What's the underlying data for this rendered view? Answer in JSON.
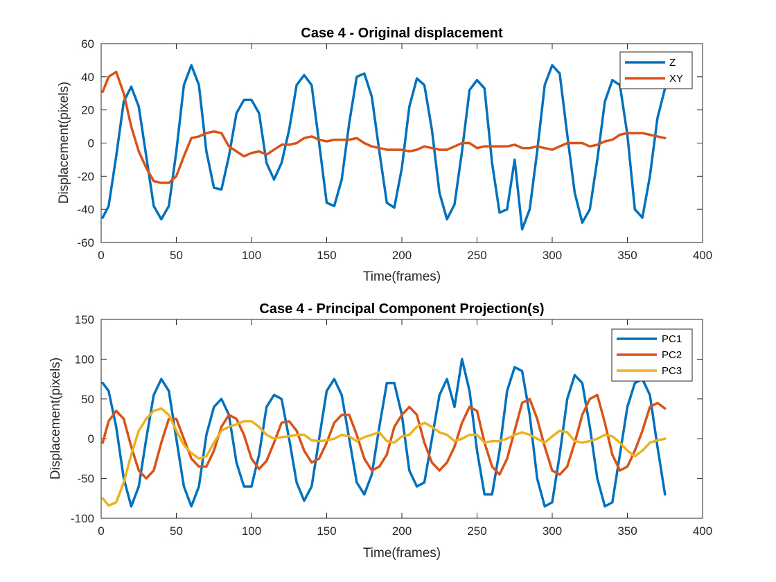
{
  "chart_data": [
    {
      "type": "line",
      "title": "Case 4 - Original displacement",
      "xlabel": "Time(frames)",
      "ylabel": "Displacement(pixels)",
      "xlim": [
        0,
        400
      ],
      "ylim": [
        -60,
        60
      ],
      "xticks": [
        0,
        50,
        100,
        150,
        200,
        250,
        300,
        350,
        400
      ],
      "yticks": [
        -60,
        -40,
        -20,
        0,
        20,
        40,
        60
      ],
      "legend_position": "top-right",
      "grid": false,
      "series": [
        {
          "name": "Z",
          "color": "#0072BD",
          "x": [
            1,
            5,
            10,
            15,
            20,
            25,
            30,
            35,
            40,
            45,
            50,
            55,
            60,
            65,
            70,
            75,
            80,
            85,
            90,
            95,
            100,
            105,
            110,
            115,
            120,
            125,
            130,
            135,
            140,
            145,
            150,
            155,
            160,
            165,
            170,
            175,
            180,
            185,
            190,
            195,
            200,
            205,
            210,
            215,
            220,
            225,
            230,
            235,
            240,
            245,
            250,
            255,
            260,
            265,
            270,
            275,
            280,
            285,
            290,
            295,
            300,
            305,
            310,
            315,
            320,
            325,
            330,
            335,
            340,
            345,
            350,
            355,
            360,
            365,
            370,
            375
          ],
          "values": [
            -45,
            -38,
            -8,
            25,
            34,
            22,
            -8,
            -38,
            -46,
            -38,
            -5,
            35,
            47,
            35,
            -5,
            -27,
            -28,
            -8,
            18,
            26,
            26,
            18,
            -12,
            -22,
            -12,
            8,
            35,
            41,
            35,
            0,
            -36,
            -38,
            -22,
            12,
            40,
            42,
            28,
            -5,
            -36,
            -39,
            -15,
            22,
            39,
            35,
            8,
            -30,
            -46,
            -37,
            -5,
            32,
            38,
            33,
            -12,
            -42,
            -40,
            -10,
            -52,
            -40,
            -5,
            35,
            47,
            42,
            5,
            -30,
            -48,
            -40,
            -10,
            25,
            38,
            35,
            5,
            -40,
            -45,
            -20,
            15,
            33
          ]
        },
        {
          "name": "XY",
          "color": "#D95319",
          "x": [
            1,
            5,
            10,
            15,
            20,
            25,
            30,
            35,
            40,
            45,
            50,
            55,
            60,
            65,
            70,
            75,
            80,
            85,
            90,
            95,
            100,
            105,
            110,
            115,
            120,
            125,
            130,
            135,
            140,
            145,
            150,
            155,
            160,
            165,
            170,
            175,
            180,
            185,
            190,
            195,
            200,
            205,
            210,
            215,
            220,
            225,
            230,
            235,
            240,
            245,
            250,
            255,
            260,
            265,
            270,
            275,
            280,
            285,
            290,
            295,
            300,
            305,
            310,
            315,
            320,
            325,
            330,
            335,
            340,
            345,
            350,
            355,
            360,
            365,
            370,
            375
          ],
          "values": [
            31,
            40,
            43,
            30,
            10,
            -5,
            -15,
            -23,
            -24,
            -24,
            -20,
            -8,
            3,
            4,
            6,
            7,
            6,
            -2,
            -5,
            -8,
            -6,
            -5,
            -7,
            -4,
            -1,
            -1,
            0,
            3,
            4,
            2,
            1,
            2,
            2,
            2,
            3,
            0,
            -2,
            -3,
            -4,
            -4,
            -4,
            -5,
            -4,
            -2,
            -3,
            -4,
            -4,
            -2,
            0,
            0,
            -3,
            -2,
            -2,
            -2,
            -2,
            -1,
            -3,
            -3,
            -2,
            -3,
            -4,
            -2,
            0,
            0,
            0,
            -2,
            -1,
            1,
            2,
            5,
            6,
            6,
            6,
            5,
            4,
            3
          ]
        }
      ]
    },
    {
      "type": "line",
      "title": "Case 4 - Principal Component Projection(s)",
      "xlabel": "Time(frames)",
      "ylabel": "Displacement(pixels)",
      "xlim": [
        0,
        400
      ],
      "ylim": [
        -100,
        150
      ],
      "xticks": [
        0,
        50,
        100,
        150,
        200,
        250,
        300,
        350,
        400
      ],
      "yticks": [
        -100,
        -50,
        0,
        50,
        100,
        150
      ],
      "legend_position": "top-right",
      "grid": false,
      "series": [
        {
          "name": "PC1",
          "color": "#0072BD",
          "x": [
            1,
            5,
            10,
            15,
            20,
            25,
            30,
            35,
            40,
            45,
            50,
            55,
            60,
            65,
            70,
            75,
            80,
            85,
            90,
            95,
            100,
            105,
            110,
            115,
            120,
            125,
            130,
            135,
            140,
            145,
            150,
            155,
            160,
            165,
            170,
            175,
            180,
            185,
            190,
            195,
            200,
            205,
            210,
            215,
            220,
            225,
            230,
            235,
            240,
            245,
            250,
            255,
            260,
            265,
            270,
            275,
            280,
            285,
            290,
            295,
            300,
            305,
            310,
            315,
            320,
            325,
            330,
            335,
            340,
            345,
            350,
            355,
            360,
            365,
            370,
            375
          ],
          "values": [
            70,
            60,
            15,
            -50,
            -85,
            -60,
            0,
            55,
            75,
            60,
            0,
            -60,
            -85,
            -60,
            5,
            40,
            50,
            30,
            -30,
            -60,
            -60,
            -20,
            40,
            55,
            50,
            0,
            -55,
            -78,
            -60,
            0,
            60,
            75,
            55,
            0,
            -55,
            -70,
            -45,
            15,
            70,
            70,
            30,
            -40,
            -60,
            -55,
            0,
            55,
            75,
            40,
            100,
            60,
            -15,
            -70,
            -70,
            -15,
            60,
            90,
            85,
            30,
            -50,
            -85,
            -80,
            -20,
            50,
            80,
            70,
            15,
            -50,
            -85,
            -80,
            -20,
            40,
            70,
            75,
            55,
            -10,
            -70
          ]
        },
        {
          "name": "PC2",
          "color": "#D95319",
          "x": [
            1,
            5,
            10,
            15,
            20,
            25,
            30,
            35,
            40,
            45,
            50,
            55,
            60,
            65,
            70,
            75,
            80,
            85,
            90,
            95,
            100,
            105,
            110,
            115,
            120,
            125,
            130,
            135,
            140,
            145,
            150,
            155,
            160,
            165,
            170,
            175,
            180,
            185,
            190,
            195,
            200,
            205,
            210,
            215,
            220,
            225,
            230,
            235,
            240,
            245,
            250,
            255,
            260,
            265,
            270,
            275,
            280,
            285,
            290,
            295,
            300,
            305,
            310,
            315,
            320,
            325,
            330,
            335,
            340,
            345,
            350,
            355,
            360,
            365,
            370,
            375
          ],
          "values": [
            -5,
            22,
            35,
            25,
            -10,
            -40,
            -50,
            -40,
            -5,
            25,
            25,
            0,
            -25,
            -35,
            -35,
            -15,
            15,
            30,
            25,
            5,
            -25,
            -38,
            -28,
            -5,
            20,
            22,
            10,
            -15,
            -30,
            -25,
            -5,
            20,
            30,
            30,
            5,
            -25,
            -40,
            -35,
            -20,
            15,
            30,
            40,
            30,
            -5,
            -30,
            -40,
            -30,
            -10,
            20,
            40,
            35,
            -5,
            -35,
            -45,
            -25,
            10,
            45,
            50,
            25,
            -10,
            -40,
            -45,
            -35,
            -5,
            30,
            50,
            55,
            20,
            -20,
            -40,
            -35,
            -15,
            10,
            40,
            45,
            38
          ]
        },
        {
          "name": "PC3",
          "color": "#EDB120",
          "x": [
            1,
            5,
            10,
            15,
            20,
            25,
            30,
            35,
            40,
            45,
            50,
            55,
            60,
            65,
            70,
            75,
            80,
            85,
            90,
            95,
            100,
            105,
            110,
            115,
            120,
            125,
            130,
            135,
            140,
            145,
            150,
            155,
            160,
            165,
            170,
            175,
            180,
            185,
            190,
            195,
            200,
            205,
            210,
            215,
            220,
            225,
            230,
            235,
            240,
            245,
            250,
            255,
            260,
            265,
            270,
            275,
            280,
            285,
            290,
            295,
            300,
            305,
            310,
            315,
            320,
            325,
            330,
            335,
            340,
            345,
            350,
            355,
            360,
            365,
            370,
            375
          ],
          "values": [
            -75,
            -84,
            -80,
            -55,
            -20,
            10,
            25,
            35,
            38,
            30,
            10,
            -8,
            -18,
            -25,
            -22,
            -5,
            10,
            15,
            18,
            22,
            22,
            15,
            5,
            0,
            2,
            3,
            5,
            5,
            -2,
            -3,
            -2,
            0,
            5,
            3,
            -3,
            2,
            5,
            8,
            -3,
            -5,
            3,
            5,
            15,
            20,
            15,
            8,
            5,
            -3,
            0,
            5,
            5,
            -5,
            -3,
            -3,
            0,
            5,
            8,
            5,
            0,
            -5,
            3,
            10,
            8,
            -3,
            -5,
            -3,
            0,
            5,
            3,
            -5,
            -15,
            -22,
            -15,
            -5,
            -2,
            0
          ]
        }
      ]
    }
  ]
}
